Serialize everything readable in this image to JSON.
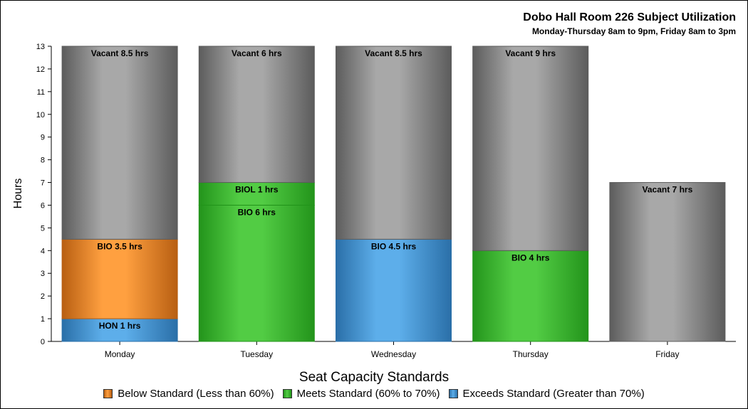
{
  "chart_data": {
    "type": "bar",
    "stacked": true,
    "title": "Dobo Hall Room 226 Subject Utilization",
    "subtitle": "Monday-Thursday 8am to 9pm, Friday 8am to 3pm",
    "xlabel": "",
    "ylabel": "Hours",
    "ylim": [
      0,
      13
    ],
    "yticks": [
      0,
      1,
      2,
      3,
      4,
      5,
      6,
      7,
      8,
      9,
      10,
      11,
      12,
      13
    ],
    "categories": [
      "Monday",
      "Tuesday",
      "Wednesday",
      "Thursday",
      "Friday"
    ],
    "stacks": [
      [
        {
          "label": "HON 1 hrs",
          "value": 1,
          "category": "exceeds"
        },
        {
          "label": "BIO 3.5 hrs",
          "value": 3.5,
          "category": "below"
        },
        {
          "label": "Vacant 8.5 hrs",
          "value": 8.5,
          "category": "vacant"
        }
      ],
      [
        {
          "label": "BIO 6 hrs",
          "value": 6,
          "category": "meets"
        },
        {
          "label": "BIOL 1 hrs",
          "value": 1,
          "category": "meets"
        },
        {
          "label": "Vacant 6 hrs",
          "value": 6,
          "category": "vacant"
        }
      ],
      [
        {
          "label": "BIO 4.5 hrs",
          "value": 4.5,
          "category": "exceeds"
        },
        {
          "label": "Vacant 8.5 hrs",
          "value": 8.5,
          "category": "vacant"
        }
      ],
      [
        {
          "label": "BIO 4 hrs",
          "value": 4,
          "category": "meets"
        },
        {
          "label": "Vacant 9 hrs",
          "value": 9,
          "category": "vacant"
        }
      ],
      [
        {
          "label": "Vacant 7 hrs",
          "value": 7,
          "category": "vacant"
        }
      ]
    ],
    "legend": {
      "title": "Seat Capacity Standards",
      "placement": "bottom",
      "items": [
        {
          "key": "below",
          "label": "Below Standard (Less than 60%)"
        },
        {
          "key": "meets",
          "label": "Meets Standard (60% to 70%)"
        },
        {
          "key": "exceeds",
          "label": "Exceeds Standard (Greater than 70%)"
        }
      ]
    },
    "colors": {
      "below": {
        "light": "#FFA040",
        "dark": "#B85F12"
      },
      "meets": {
        "light": "#52CC44",
        "dark": "#23941B"
      },
      "exceeds": {
        "light": "#5DAEEA",
        "dark": "#2A6FA8"
      },
      "vacant": {
        "light": "#A8A8A8",
        "dark": "#5C5C5C"
      }
    },
    "grid": false
  }
}
